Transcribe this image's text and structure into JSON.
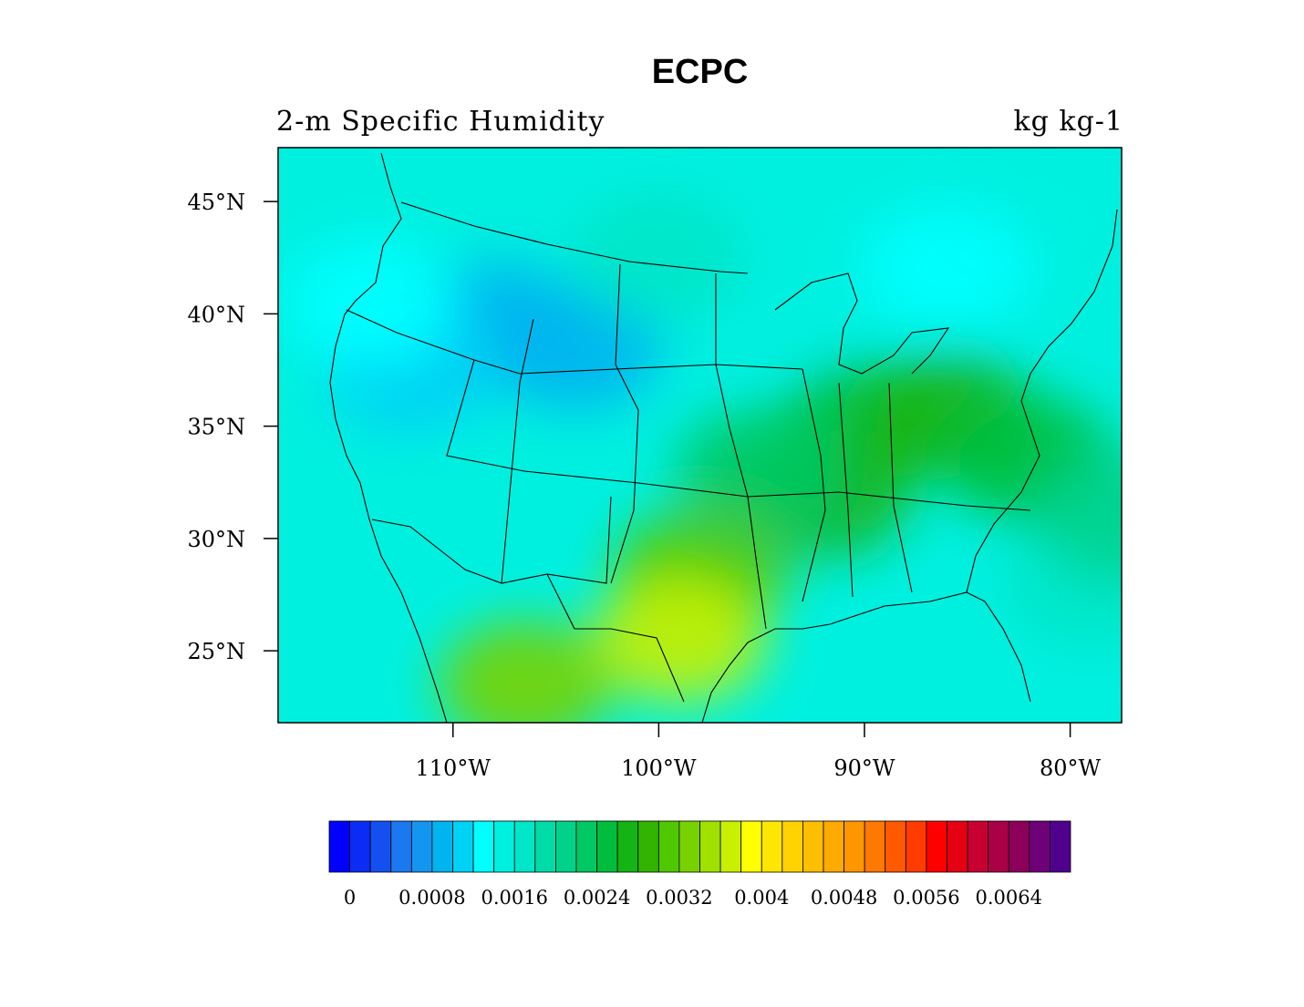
{
  "title": "ECPC",
  "subtitle_left": "2-m Specific Humidity",
  "subtitle_right": "kg kg-1",
  "map": {
    "lon_range": [
      -118.5,
      -77.5
    ],
    "lat_range": [
      21.8,
      47.4
    ],
    "lat_ticks": [
      {
        "value": 45,
        "label": "45°N"
      },
      {
        "value": 40,
        "label": "40°N"
      },
      {
        "value": 35,
        "label": "35°N"
      },
      {
        "value": 30,
        "label": "30°N"
      },
      {
        "value": 25,
        "label": "25°N"
      }
    ],
    "lon_ticks": [
      {
        "value": -110,
        "label": "110°W"
      },
      {
        "value": -100,
        "label": "100°W"
      },
      {
        "value": -90,
        "label": "90°W"
      },
      {
        "value": -80,
        "label": "80°W"
      }
    ]
  },
  "colorbar": {
    "colors": [
      "#0000ff",
      "#0a2cf5",
      "#1450f0",
      "#1a78f0",
      "#1496f0",
      "#00b4f0",
      "#00d2f5",
      "#00ffff",
      "#00f0e0",
      "#00e6c8",
      "#00dca8",
      "#00d28c",
      "#00c864",
      "#00be3c",
      "#14b414",
      "#32b400",
      "#50c800",
      "#78d200",
      "#a0e100",
      "#c8f000",
      "#ffff00",
      "#ffe600",
      "#ffd200",
      "#ffbe00",
      "#ffaa00",
      "#ff9600",
      "#ff7800",
      "#ff5a00",
      "#ff3c00",
      "#ff0000",
      "#e60014",
      "#c80032",
      "#aa0046",
      "#8c005a",
      "#6e0078",
      "#50008c"
    ],
    "labels": [
      "0",
      "0.0008",
      "0.0016",
      "0.0024",
      "0.0032",
      "0.004",
      "0.0048",
      "0.0056",
      "0.0064"
    ]
  },
  "field_blobs": [
    {
      "lon": -108,
      "lat": 39.5,
      "value": 0.0011
    },
    {
      "lon": -104,
      "lat": 38.5,
      "value": 0.0012
    },
    {
      "lon": -112,
      "lat": 37.5,
      "value": 0.0013
    },
    {
      "lon": -114,
      "lat": 40.5,
      "value": 0.0015
    },
    {
      "lon": -95,
      "lat": 40.5,
      "value": 0.0017
    },
    {
      "lon": -100,
      "lat": 42.5,
      "value": 0.0018
    },
    {
      "lon": -82,
      "lat": 44,
      "value": 0.0016
    },
    {
      "lon": -86,
      "lat": 42,
      "value": 0.0015
    },
    {
      "lon": -90,
      "lat": 35,
      "value": 0.0027
    },
    {
      "lon": -86,
      "lat": 35.5,
      "value": 0.0028
    },
    {
      "lon": -92,
      "lat": 32,
      "value": 0.0029
    },
    {
      "lon": -95,
      "lat": 33,
      "value": 0.0026
    },
    {
      "lon": -98,
      "lat": 28.5,
      "value": 0.0032
    },
    {
      "lon": -99,
      "lat": 25.5,
      "value": 0.0039
    },
    {
      "lon": -106.5,
      "lat": 23.5,
      "value": 0.0034
    },
    {
      "lon": -82,
      "lat": 33.5,
      "value": 0.0027
    },
    {
      "lon": -79,
      "lat": 28,
      "value": 0.0018
    },
    {
      "lon": -77.5,
      "lat": 31,
      "value": 0.0022
    }
  ]
}
